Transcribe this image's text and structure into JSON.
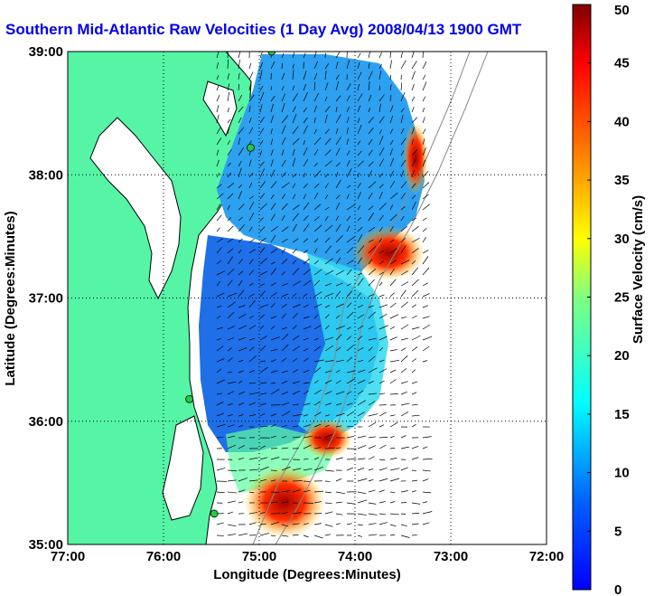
{
  "chart_data": {
    "type": "heatmap",
    "title": "Southern Mid-Atlantic Raw Velocities (1 Day Avg) 2008/04/13 1900 GMT",
    "xlabel": "Longitude (Degrees:Minutes)",
    "ylabel": "Latitude (Degrees:Minutes)",
    "x_ticks": [
      "77:00",
      "76:00",
      "75:00",
      "74:00",
      "73:00",
      "72:00"
    ],
    "y_ticks": [
      "39:00",
      "38:00",
      "37:00",
      "36:00",
      "35:00"
    ],
    "xlim": [
      -77,
      -72
    ],
    "ylim": [
      35,
      39
    ],
    "grid": true,
    "grid_style": "dotted",
    "colorbar": {
      "label": "Surface Velocity (cm/s)",
      "range": [
        0,
        50
      ],
      "ticks": [
        "0",
        "5",
        "10",
        "15",
        "20",
        "25",
        "30",
        "35",
        "40",
        "45",
        "50"
      ],
      "colormap": "jet"
    },
    "colors": {
      "land": "#55f5a5",
      "coast": "#000000",
      "bathymetry": "#888888",
      "title": "#0000ee",
      "station": "#22cc44"
    },
    "stations": [
      {
        "lon": -74.87,
        "lat": 39.0
      },
      {
        "lon": -75.09,
        "lat": 38.22
      },
      {
        "lon": -75.73,
        "lat": 36.18
      },
      {
        "lon": -75.47,
        "lat": 35.25
      }
    ],
    "velocity_regions": [
      {
        "speed": 10,
        "lon": [
          -75.5,
          -73.5
        ],
        "lat": [
          37.4,
          39.0
        ]
      },
      {
        "speed": 6,
        "lon": [
          -75.8,
          -74.5
        ],
        "lat": [
          36.2,
          37.4
        ]
      },
      {
        "speed": 32,
        "lon": [
          -74.0,
          -73.6
        ],
        "lat": [
          37.2,
          37.5
        ]
      },
      {
        "speed": 38,
        "lon": [
          -73.4,
          -73.2
        ],
        "lat": [
          37.9,
          38.3
        ]
      },
      {
        "speed": 42,
        "lon": [
          -75.2,
          -74.5
        ],
        "lat": [
          35.1,
          35.6
        ]
      },
      {
        "speed": 38,
        "lon": [
          -74.5,
          -74.0
        ],
        "lat": [
          35.8,
          36.1
        ]
      }
    ]
  }
}
